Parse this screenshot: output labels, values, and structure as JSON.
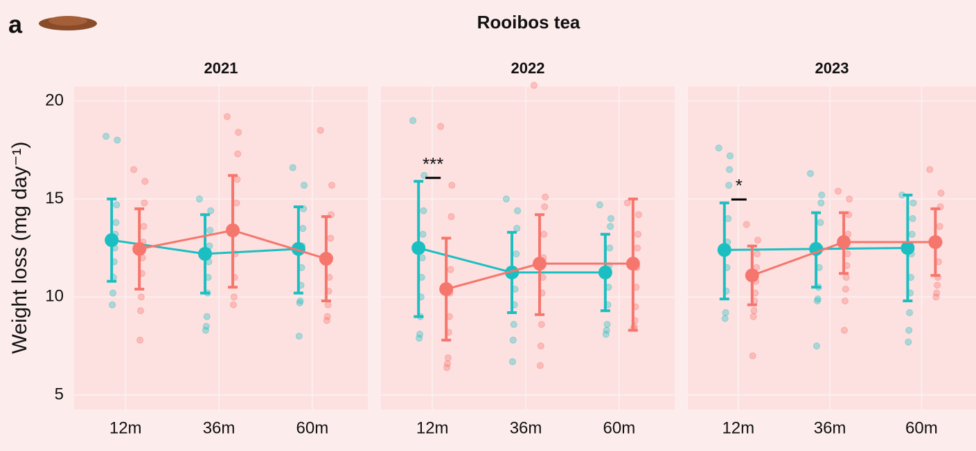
{
  "header": {
    "panel_label": "a",
    "title": "Rooibos tea"
  },
  "chart_data": [
    {
      "type": "point",
      "title": "2021",
      "ylabel": "Weight loss (mg day⁻¹)",
      "categories": [
        "12m",
        "36m",
        "60m"
      ],
      "ylim": [
        4.26,
        20.74
      ],
      "yticks": [
        5,
        10,
        15,
        20
      ],
      "grid": true,
      "annotations": [
        null,
        null,
        null
      ],
      "series": [
        {
          "color": "#1bbfc2",
          "values": [
            12.9,
            12.2,
            12.45
          ],
          "lower": [
            10.8,
            10.2,
            10.2
          ],
          "upper": [
            15.0,
            14.2,
            14.6
          ],
          "points": [
            [
              18.2,
              18.0,
              14.7,
              13.8,
              13.2,
              12.5,
              11.8,
              11.0,
              10.2,
              9.6
            ],
            [
              15.0,
              14.4,
              13.4,
              12.6,
              11.8,
              11.0,
              10.2,
              9.0,
              8.5,
              8.3
            ],
            [
              16.6,
              15.7,
              14.5,
              13.5,
              12.6,
              11.5,
              10.6,
              9.8,
              9.7,
              8.0
            ]
          ]
        },
        {
          "color": "#f5766d",
          "values": [
            12.45,
            13.4,
            11.95
          ],
          "lower": [
            10.4,
            10.5,
            9.8
          ],
          "upper": [
            14.5,
            16.2,
            14.1
          ],
          "points": [
            [
              16.5,
              15.9,
              14.8,
              13.6,
              12.8,
              12.0,
              11.2,
              10.0,
              9.3,
              7.8
            ],
            [
              19.2,
              18.4,
              17.3,
              16.0,
              14.8,
              13.4,
              12.2,
              11.0,
              10.0,
              9.6
            ],
            [
              18.5,
              15.7,
              14.2,
              13.0,
              12.0,
              11.0,
              10.3,
              9.6,
              9.0,
              8.8
            ]
          ]
        }
      ]
    },
    {
      "type": "point",
      "title": "2022",
      "categories": [
        "12m",
        "36m",
        "60m"
      ],
      "ylim": [
        4.26,
        20.74
      ],
      "yticks": [
        5,
        10,
        15,
        20
      ],
      "grid": true,
      "annotations": [
        "***",
        null,
        null
      ],
      "series": [
        {
          "color": "#1bbfc2",
          "values": [
            12.5,
            11.25,
            11.25
          ],
          "lower": [
            9.0,
            9.2,
            9.3
          ],
          "upper": [
            15.9,
            13.3,
            13.2
          ],
          "points": [
            [
              19.0,
              16.2,
              14.4,
              13.2,
              12.0,
              11.0,
              10.0,
              9.0,
              8.1,
              7.9
            ],
            [
              15.0,
              14.4,
              13.5,
              12.2,
              11.2,
              10.4,
              9.6,
              8.6,
              7.8,
              6.7
            ],
            [
              14.7,
              14.0,
              13.6,
              12.5,
              11.6,
              10.5,
              9.6,
              8.6,
              8.3,
              8.1
            ]
          ]
        },
        {
          "color": "#f5766d",
          "values": [
            10.4,
            11.7,
            11.7
          ],
          "lower": [
            7.8,
            9.1,
            8.3
          ],
          "upper": [
            13.0,
            14.2,
            15.0
          ],
          "points": [
            [
              18.7,
              15.7,
              14.1,
              11.4,
              10.2,
              9.0,
              8.2,
              6.9,
              6.6,
              6.4
            ],
            [
              20.8,
              15.1,
              14.6,
              13.2,
              12.0,
              11.0,
              10.2,
              8.6,
              7.5,
              6.5
            ],
            [
              14.8,
              14.2,
              13.2,
              12.5,
              11.5,
              10.5,
              9.5,
              8.8,
              8.5,
              8.4
            ]
          ]
        }
      ]
    },
    {
      "type": "point",
      "title": "2023",
      "categories": [
        "12m",
        "36m",
        "60m"
      ],
      "ylim": [
        4.26,
        20.74
      ],
      "yticks": [
        5,
        10,
        15,
        20
      ],
      "grid": true,
      "annotations": [
        "*",
        null,
        null
      ],
      "series": [
        {
          "color": "#1bbfc2",
          "values": [
            12.4,
            12.45,
            12.5
          ],
          "lower": [
            9.9,
            10.5,
            9.8
          ],
          "upper": [
            14.8,
            14.3,
            15.2
          ],
          "points": [
            [
              17.6,
              17.2,
              16.5,
              15.7,
              14.0,
              12.8,
              11.5,
              10.3,
              9.2,
              8.9
            ],
            [
              16.3,
              15.2,
              14.8,
              13.8,
              12.5,
              11.5,
              10.5,
              9.9,
              9.8,
              7.5
            ],
            [
              15.2,
              14.8,
              14.0,
              13.2,
              12.2,
              11.0,
              10.2,
              9.2,
              8.3,
              7.7
            ]
          ]
        },
        {
          "color": "#f5766d",
          "values": [
            11.1,
            12.8,
            12.8
          ],
          "lower": [
            9.6,
            11.2,
            11.1
          ],
          "upper": [
            12.6,
            14.3,
            14.5
          ],
          "points": [
            [
              13.7,
              12.9,
              12.2,
              11.5,
              10.8,
              10.2,
              9.8,
              9.3,
              9.0,
              7.0
            ],
            [
              15.4,
              15.0,
              14.2,
              13.2,
              12.2,
              11.6,
              11.0,
              10.4,
              9.8,
              8.3
            ],
            [
              16.5,
              15.3,
              14.6,
              13.6,
              12.8,
              11.8,
              11.0,
              10.6,
              10.2,
              10.0
            ]
          ]
        }
      ]
    }
  ]
}
